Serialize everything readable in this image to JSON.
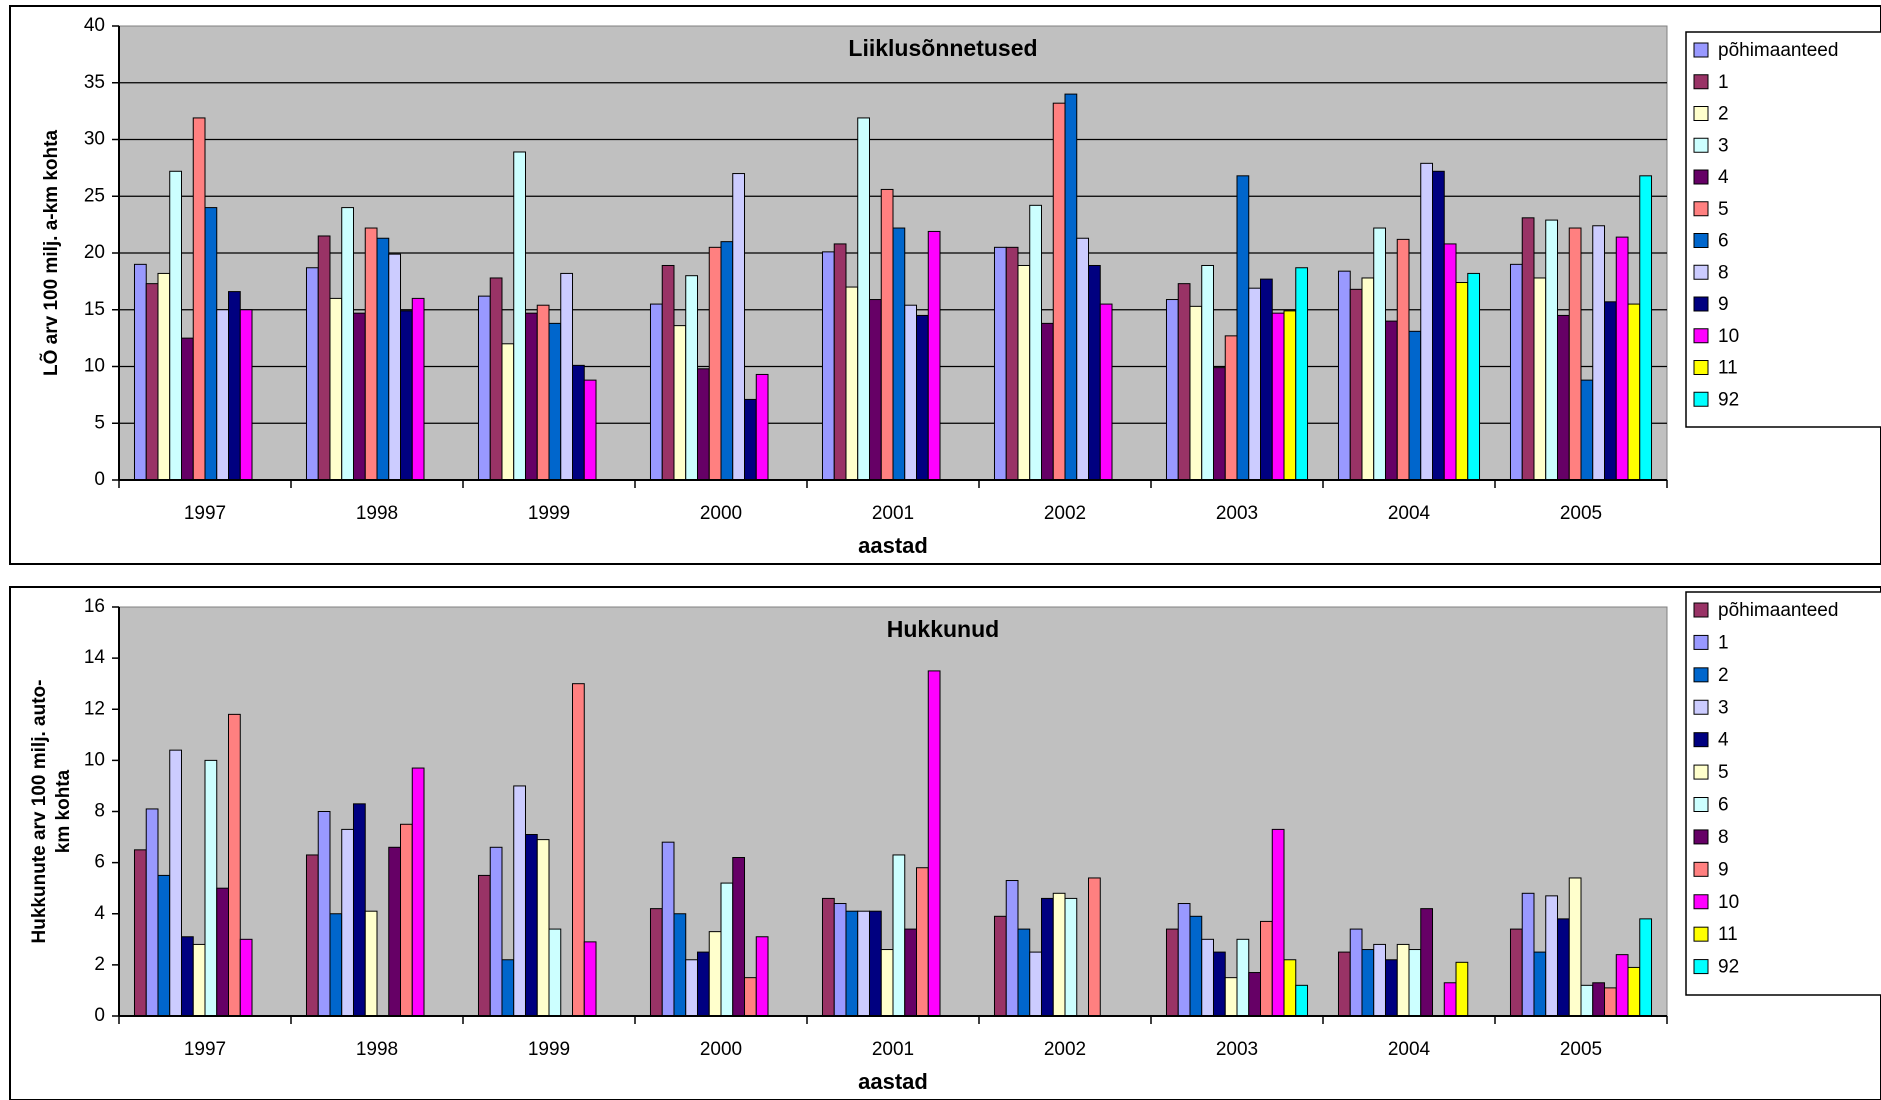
{
  "chart_data": [
    {
      "type": "bar",
      "title": "Liiklusõnnetused",
      "y_label": [
        "LÕ arv 100 milj. a-km kohta"
      ],
      "x_label": "aastad",
      "categories": [
        "1997",
        "1998",
        "1999",
        "2000",
        "2001",
        "2002",
        "2003",
        "2004",
        "2005"
      ],
      "ylim": [
        0,
        40
      ],
      "yticks": [
        0,
        5,
        10,
        15,
        20,
        25,
        30,
        35,
        40
      ],
      "grid": true,
      "series": [
        {
          "name": "põhimaanteed",
          "color": "#9999FF",
          "values": [
            19,
            18.7,
            16.2,
            15.5,
            20.1,
            20.5,
            15.9,
            18.4,
            19
          ]
        },
        {
          "name": "1",
          "color": "#993366",
          "values": [
            17.3,
            21.5,
            17.8,
            18.9,
            20.8,
            20.5,
            17.3,
            16.8,
            23.1
          ]
        },
        {
          "name": "2",
          "color": "#FFFFCC",
          "values": [
            18.2,
            16,
            12,
            13.6,
            17,
            18.9,
            15.3,
            17.8,
            17.8
          ]
        },
        {
          "name": "3",
          "color": "#CCFFFF",
          "values": [
            27.2,
            24,
            28.9,
            18,
            31.9,
            24.2,
            18.9,
            22.2,
            22.9
          ]
        },
        {
          "name": "4",
          "color": "#660066",
          "values": [
            12.5,
            14.7,
            14.7,
            9.8,
            15.9,
            13.8,
            9.9,
            14,
            14.5
          ]
        },
        {
          "name": "5",
          "color": "#FF8080",
          "values": [
            31.9,
            22.2,
            15.4,
            20.5,
            25.6,
            33.2,
            12.7,
            21.2,
            22.2
          ]
        },
        {
          "name": "6",
          "color": "#0066CC",
          "values": [
            24,
            21.3,
            13.8,
            21,
            22.2,
            34,
            26.8,
            13.1,
            8.8
          ]
        },
        {
          "name": "8",
          "color": "#CCCCFF",
          "values": [
            15,
            19.9,
            18.2,
            27,
            15.4,
            21.3,
            16.9,
            27.9,
            22.4
          ]
        },
        {
          "name": "9",
          "color": "#000080",
          "values": [
            16.6,
            14.9,
            10.1,
            7.1,
            14.5,
            18.9,
            17.7,
            27.2,
            15.7
          ]
        },
        {
          "name": "10",
          "color": "#FF00FF",
          "values": [
            15,
            16,
            8.8,
            9.3,
            21.9,
            15.5,
            14.7,
            20.8,
            21.4
          ]
        },
        {
          "name": "11",
          "color": "#FFFF00",
          "values": [
            null,
            null,
            null,
            null,
            null,
            null,
            14.9,
            17.4,
            15.5
          ]
        },
        {
          "name": "92",
          "color": "#00FFFF",
          "values": [
            null,
            null,
            null,
            null,
            null,
            null,
            18.7,
            18.2,
            26.8
          ]
        }
      ]
    },
    {
      "type": "bar",
      "title": "Hukkunud",
      "y_label": [
        "Hukkunute arv 100 milj. auto-",
        "km kohta"
      ],
      "x_label": "aastad",
      "categories": [
        "1997",
        "1998",
        "1999",
        "2000",
        "2001",
        "2002",
        "2003",
        "2004",
        "2005"
      ],
      "ylim": [
        0,
        16
      ],
      "yticks": [
        0,
        2,
        4,
        6,
        8,
        10,
        12,
        14,
        16
      ],
      "grid": false,
      "series": [
        {
          "name": "põhimaanteed",
          "color": "#993366",
          "values": [
            6.5,
            6.3,
            5.5,
            4.2,
            4.6,
            3.9,
            3.4,
            2.5,
            3.4
          ]
        },
        {
          "name": "1",
          "color": "#9999FF",
          "values": [
            8.1,
            8,
            6.6,
            6.8,
            4.4,
            5.3,
            4.4,
            3.4,
            4.8
          ]
        },
        {
          "name": "2",
          "color": "#0066CC",
          "values": [
            5.5,
            4,
            2.2,
            4,
            4.1,
            3.4,
            3.9,
            2.6,
            2.5
          ]
        },
        {
          "name": "3",
          "color": "#CCCCFF",
          "values": [
            10.4,
            7.3,
            9,
            2.2,
            4.1,
            2.5,
            3,
            2.8,
            4.7
          ]
        },
        {
          "name": "4",
          "color": "#000080",
          "values": [
            3.1,
            8.3,
            7.1,
            2.5,
            4.1,
            4.6,
            2.5,
            2.2,
            3.8
          ]
        },
        {
          "name": "5",
          "color": "#FFFFCC",
          "values": [
            2.8,
            4.1,
            6.9,
            3.3,
            2.6,
            4.8,
            1.5,
            2.8,
            5.4
          ]
        },
        {
          "name": "6",
          "color": "#CCFFFF",
          "values": [
            10,
            null,
            3.4,
            5.2,
            6.3,
            4.6,
            3,
            2.6,
            1.2
          ]
        },
        {
          "name": "8",
          "color": "#660066",
          "values": [
            5,
            6.6,
            null,
            6.2,
            3.4,
            null,
            1.7,
            4.2,
            1.3
          ]
        },
        {
          "name": "9",
          "color": "#FF8080",
          "values": [
            11.8,
            7.5,
            13,
            1.5,
            5.8,
            5.4,
            3.7,
            null,
            1.1
          ]
        },
        {
          "name": "10",
          "color": "#FF00FF",
          "values": [
            3,
            9.7,
            2.9,
            3.1,
            13.5,
            null,
            7.3,
            1.3,
            2.4
          ]
        },
        {
          "name": "11",
          "color": "#FFFF00",
          "values": [
            null,
            null,
            null,
            null,
            null,
            null,
            2.2,
            2.1,
            1.9
          ]
        },
        {
          "name": "92",
          "color": "#00FFFF",
          "values": [
            null,
            null,
            null,
            null,
            null,
            null,
            1.2,
            null,
            3.8
          ]
        }
      ]
    }
  ]
}
